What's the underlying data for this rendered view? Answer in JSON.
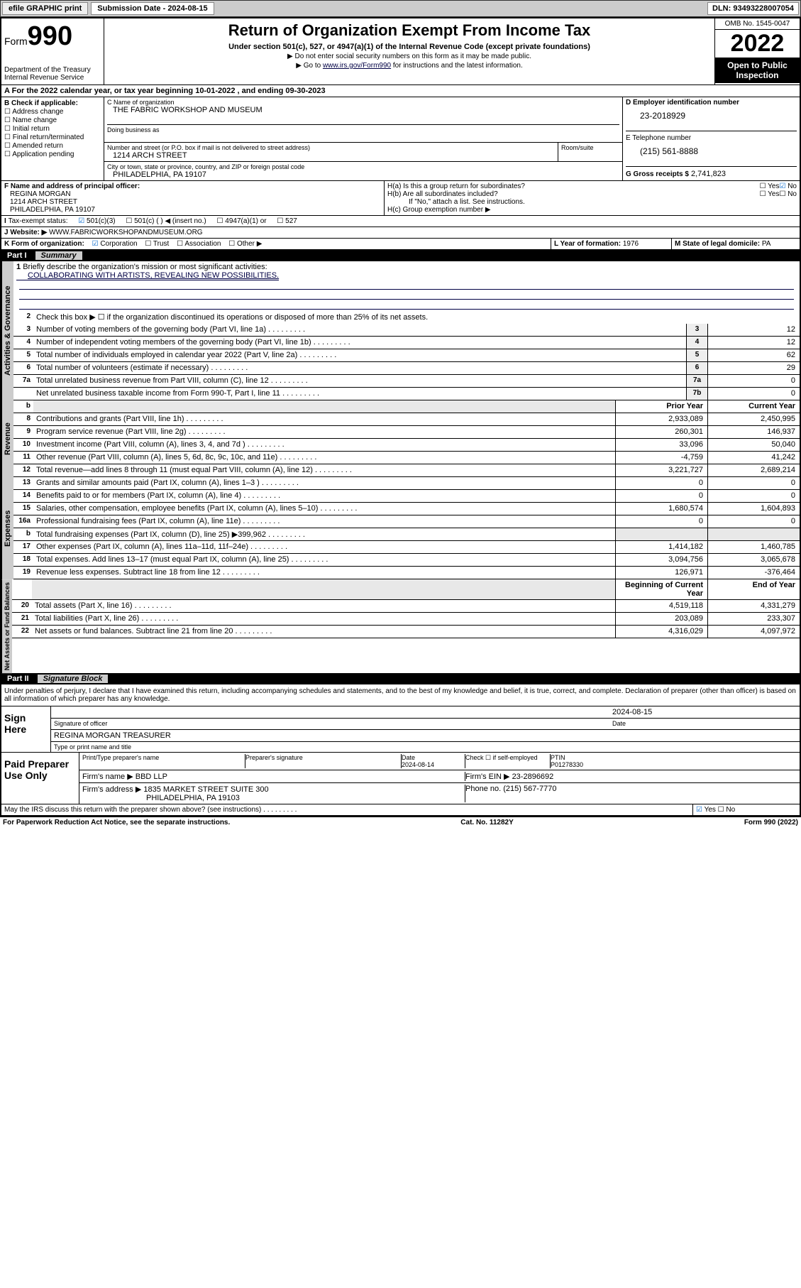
{
  "toolbar": {
    "efile": "efile GRAPHIC print",
    "sub_label": "Submission Date - 2024-08-15",
    "dln": "DLN: 93493228007054"
  },
  "header": {
    "form_word": "Form",
    "form_num": "990",
    "dept": "Department of the Treasury",
    "irs": "Internal Revenue Service",
    "title": "Return of Organization Exempt From Income Tax",
    "sub": "Under section 501(c), 527, or 4947(a)(1) of the Internal Revenue Code (except private foundations)",
    "note1": "▶ Do not enter social security numbers on this form as it may be made public.",
    "note2_pre": "▶ Go to ",
    "note2_link": "www.irs.gov/Form990",
    "note2_post": " for instructions and the latest information.",
    "omb": "OMB No. 1545-0047",
    "year": "2022",
    "inspect": "Open to Public Inspection"
  },
  "line_a": "For the 2022 calendar year, or tax year beginning 10-01-2022    , and ending 09-30-2023",
  "section_b": {
    "hdr": "B Check if applicable:",
    "items": [
      "Address change",
      "Name change",
      "Initial return",
      "Final return/terminated",
      "Amended return",
      "Application pending"
    ]
  },
  "org": {
    "name_lbl": "C Name of organization",
    "name": "THE FABRIC WORKSHOP AND MUSEUM",
    "dba_lbl": "Doing business as",
    "addr_lbl": "Number and street (or P.O. box if mail is not delivered to street address)",
    "room_lbl": "Room/suite",
    "addr": "1214 ARCH STREET",
    "city_lbl": "City or town, state or province, country, and ZIP or foreign postal code",
    "city": "PHILADELPHIA, PA  19107"
  },
  "ein": {
    "lbl": "D Employer identification number",
    "val": "23-2018929"
  },
  "phone": {
    "lbl": "E Telephone number",
    "val": "(215) 561-8888"
  },
  "gross": {
    "lbl": "G Gross receipts $",
    "val": "2,741,823"
  },
  "officer": {
    "lbl": "F  Name and address of principal officer:",
    "name": "REGINA MORGAN",
    "addr1": "1214 ARCH STREET",
    "addr2": "PHILADELPHIA, PA  19107"
  },
  "h": {
    "ha": "H(a)  Is this a group return for subordinates?",
    "hb": "H(b)  Are all subordinates included?",
    "hb_note": "If \"No,\" attach a list. See instructions.",
    "hc": "H(c)  Group exemption number ▶",
    "yes": "Yes",
    "no": "No"
  },
  "tax_status": {
    "lbl": "Tax-exempt status:",
    "opts": [
      "501(c)(3)",
      "501(c) (  ) ◀ (insert no.)",
      "4947(a)(1) or",
      "527"
    ]
  },
  "website": {
    "lbl": "Website: ▶",
    "val": "WWW.FABRICWORKSHOPANDMUSEUM.ORG"
  },
  "k": {
    "lbl": "K Form of organization:",
    "opts": [
      "Corporation",
      "Trust",
      "Association",
      "Other ▶"
    ]
  },
  "l": {
    "lbl": "L Year of formation:",
    "val": "1976"
  },
  "m": {
    "lbl": "M State of legal domicile:",
    "val": "PA"
  },
  "part1": {
    "num": "Part I",
    "title": "Summary"
  },
  "mission": {
    "lbl": "Briefly describe the organization's mission or most significant activities:",
    "text": "COLLABORATING WITH ARTISTS, REVEALING NEW POSSIBILITIES."
  },
  "line2": "Check this box ▶ ☐  if the organization discontinued its operations or disposed of more than 25% of its net assets.",
  "governance_lines": [
    {
      "n": "3",
      "d": "Number of voting members of the governing body (Part VI, line 1a)",
      "b": "3",
      "v": "12"
    },
    {
      "n": "4",
      "d": "Number of independent voting members of the governing body (Part VI, line 1b)",
      "b": "4",
      "v": "12"
    },
    {
      "n": "5",
      "d": "Total number of individuals employed in calendar year 2022 (Part V, line 2a)",
      "b": "5",
      "v": "62"
    },
    {
      "n": "6",
      "d": "Total number of volunteers (estimate if necessary)",
      "b": "6",
      "v": "29"
    },
    {
      "n": "7a",
      "d": "Total unrelated business revenue from Part VIII, column (C), line 12",
      "b": "7a",
      "v": "0"
    },
    {
      "n": "",
      "d": "Net unrelated business taxable income from Form 990-T, Part I, line 11",
      "b": "7b",
      "v": "0"
    }
  ],
  "col_hdrs": {
    "b": "b",
    "prior": "Prior Year",
    "current": "Current Year"
  },
  "revenue_lines": [
    {
      "n": "8",
      "d": "Contributions and grants (Part VIII, line 1h)",
      "p": "2,933,089",
      "c": "2,450,995"
    },
    {
      "n": "9",
      "d": "Program service revenue (Part VIII, line 2g)",
      "p": "260,301",
      "c": "146,937"
    },
    {
      "n": "10",
      "d": "Investment income (Part VIII, column (A), lines 3, 4, and 7d )",
      "p": "33,096",
      "c": "50,040"
    },
    {
      "n": "11",
      "d": "Other revenue (Part VIII, column (A), lines 5, 6d, 8c, 9c, 10c, and 11e)",
      "p": "-4,759",
      "c": "41,242"
    },
    {
      "n": "12",
      "d": "Total revenue—add lines 8 through 11 (must equal Part VIII, column (A), line 12)",
      "p": "3,221,727",
      "c": "2,689,214"
    }
  ],
  "expense_lines": [
    {
      "n": "13",
      "d": "Grants and similar amounts paid (Part IX, column (A), lines 1–3 )",
      "p": "0",
      "c": "0"
    },
    {
      "n": "14",
      "d": "Benefits paid to or for members (Part IX, column (A), line 4)",
      "p": "0",
      "c": "0"
    },
    {
      "n": "15",
      "d": "Salaries, other compensation, employee benefits (Part IX, column (A), lines 5–10)",
      "p": "1,680,574",
      "c": "1,604,893"
    },
    {
      "n": "16a",
      "d": "Professional fundraising fees (Part IX, column (A), line 11e)",
      "p": "0",
      "c": "0"
    },
    {
      "n": "b",
      "d": "Total fundraising expenses (Part IX, column (D), line 25) ▶399,962",
      "p": "",
      "c": ""
    },
    {
      "n": "17",
      "d": "Other expenses (Part IX, column (A), lines 11a–11d, 11f–24e)",
      "p": "1,414,182",
      "c": "1,460,785"
    },
    {
      "n": "18",
      "d": "Total expenses. Add lines 13–17 (must equal Part IX, column (A), line 25)",
      "p": "3,094,756",
      "c": "3,065,678"
    },
    {
      "n": "19",
      "d": "Revenue less expenses. Subtract line 18 from line 12",
      "p": "126,971",
      "c": "-376,464"
    }
  ],
  "net_hdrs": {
    "begin": "Beginning of Current Year",
    "end": "End of Year"
  },
  "net_lines": [
    {
      "n": "20",
      "d": "Total assets (Part X, line 16)",
      "p": "4,519,118",
      "c": "4,331,279"
    },
    {
      "n": "21",
      "d": "Total liabilities (Part X, line 26)",
      "p": "203,089",
      "c": "233,307"
    },
    {
      "n": "22",
      "d": "Net assets or fund balances. Subtract line 21 from line 20",
      "p": "4,316,029",
      "c": "4,097,972"
    }
  ],
  "part2": {
    "num": "Part II",
    "title": "Signature Block"
  },
  "penalty": "Under penalties of perjury, I declare that I have examined this return, including accompanying schedules and statements, and to the best of my knowledge and belief, it is true, correct, and complete. Declaration of preparer (other than officer) is based on all information of which preparer has any knowledge.",
  "sign": {
    "here": "Sign Here",
    "sig_lbl": "Signature of officer",
    "date": "2024-08-15",
    "date_lbl": "Date",
    "name": "REGINA MORGAN  TREASURER",
    "name_lbl": "Type or print name and title"
  },
  "preparer": {
    "lbl": "Paid Preparer Use Only",
    "name_lbl": "Print/Type preparer's name",
    "sig_lbl": "Preparer's signature",
    "date_lbl": "Date",
    "date": "2024-08-14",
    "self_lbl": "Check ☐ if self-employed",
    "ptin_lbl": "PTIN",
    "ptin": "P01278330",
    "firm_lbl": "Firm's name    ▶",
    "firm": "BBD LLP",
    "ein_lbl": "Firm's EIN ▶",
    "ein": "23-2896692",
    "addr_lbl": "Firm's address ▶",
    "addr1": "1835 MARKET STREET SUITE 300",
    "addr2": "PHILADELPHIA, PA  19103",
    "phone_lbl": "Phone no.",
    "phone": "(215) 567-7770"
  },
  "may_irs": "May the IRS discuss this return with the preparer shown above? (see instructions)",
  "footer": {
    "pra": "For Paperwork Reduction Act Notice, see the separate instructions.",
    "cat": "Cat. No. 11282Y",
    "form": "Form 990 (2022)"
  },
  "tabs": {
    "gov": "Activities & Governance",
    "rev": "Revenue",
    "exp": "Expenses",
    "net": "Net Assets or Fund Balances"
  }
}
